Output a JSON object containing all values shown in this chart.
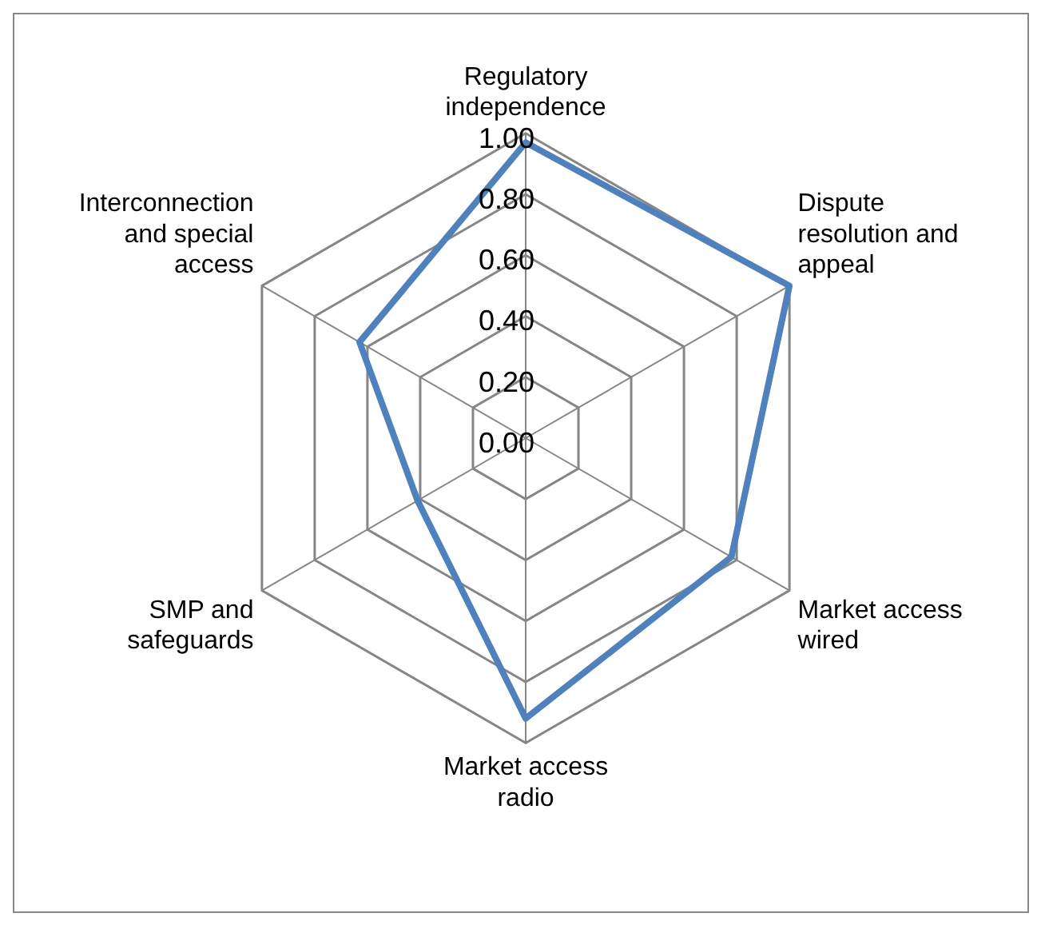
{
  "chart_data": {
    "type": "radar",
    "categories": [
      "Regulatory independence",
      "Dispute resolution and appeal",
      "Market access wired",
      "Market access radio",
      "SMP and safeguards",
      "Interconnection and special access"
    ],
    "series": [
      {
        "color": "#4f81bd",
        "values": [
          0.97,
          1.0,
          0.78,
          0.92,
          0.41,
          0.63
        ]
      }
    ],
    "ylim": [
      0,
      1
    ],
    "yticks": [
      {
        "value": 0,
        "label": "0.00"
      },
      {
        "value": 0.2,
        "label": "0.20"
      },
      {
        "value": 0.4,
        "label": "0.40"
      },
      {
        "value": 0.6,
        "label": "0.60"
      },
      {
        "value": 0.8,
        "label": "0.80"
      },
      {
        "value": 1,
        "label": "1.00"
      }
    ],
    "grid": true,
    "legend": false,
    "marker": "none"
  }
}
